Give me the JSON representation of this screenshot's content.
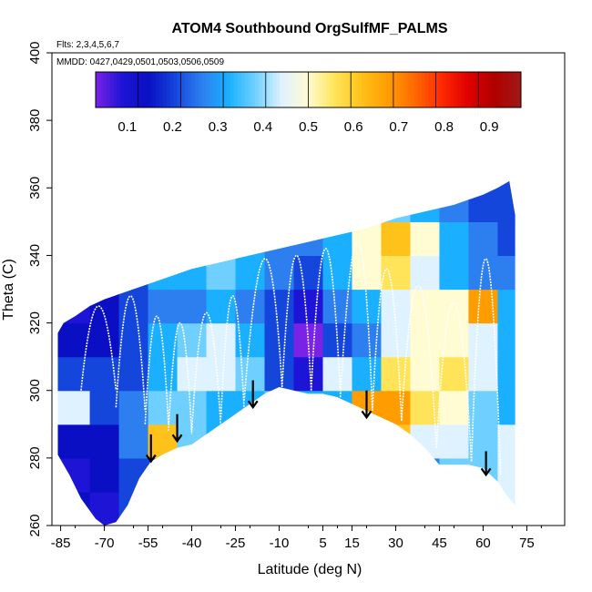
{
  "chart_data": {
    "type": "heatmap",
    "title": "ATOM4 Southbound OrgSulfMF_PALMS",
    "subtitle_flights": "Flts: 2,3,4,5,6,7",
    "subtitle_dates": "MMDD: 0427,0429,0501,0503,0506,0509",
    "xlabel": "Latitude (deg N)",
    "ylabel": "Theta (C)",
    "xlim": [
      -88,
      88
    ],
    "ylim": [
      260,
      400
    ],
    "x_ticks": [
      -85,
      -70,
      -55,
      -40,
      -25,
      -10,
      5,
      15,
      30,
      45,
      60,
      75
    ],
    "y_ticks": [
      260,
      280,
      300,
      320,
      340,
      360,
      380,
      400
    ],
    "colorbar": {
      "min": 0.03,
      "max": 0.97,
      "tick_values": [
        0.1,
        0.2,
        0.3,
        0.4,
        0.5,
        0.6,
        0.7,
        0.8,
        0.9
      ],
      "tick_labels": [
        "0.1",
        "0.2",
        "0.3",
        "0.4",
        "0.5",
        "0.6",
        "0.7",
        "0.8",
        "0.9"
      ],
      "colors": [
        "#7a22e6",
        "#1e14d6",
        "#0a0fc4",
        "#1446dc",
        "#2d7ff0",
        "#1ab0ff",
        "#6fd0ff",
        "#dff2ff",
        "#fffbd2",
        "#ffe45a",
        "#ffc21a",
        "#ff9c00",
        "#ff6a00",
        "#ff2a00",
        "#e00000",
        "#b00000",
        "#a01818"
      ]
    },
    "region_top": [
      [
        -86,
        317
      ],
      [
        -84,
        320
      ],
      [
        -80,
        322
      ],
      [
        -75,
        325
      ],
      [
        -70,
        327
      ],
      [
        -60,
        330
      ],
      [
        -50,
        333
      ],
      [
        -40,
        336
      ],
      [
        -30,
        338
      ],
      [
        -20,
        340
      ],
      [
        -10,
        342
      ],
      [
        0,
        344
      ],
      [
        10,
        346
      ],
      [
        20,
        348
      ],
      [
        30,
        351
      ],
      [
        40,
        353
      ],
      [
        50,
        355
      ],
      [
        60,
        358
      ],
      [
        65,
        360
      ],
      [
        69,
        362
      ],
      [
        71,
        352
      ]
    ],
    "region_bottom": [
      [
        -86,
        281
      ],
      [
        -82,
        275
      ],
      [
        -78,
        268
      ],
      [
        -73,
        262
      ],
      [
        -70,
        260
      ],
      [
        -66,
        261
      ],
      [
        -62,
        266
      ],
      [
        -58,
        274
      ],
      [
        -54,
        279
      ],
      [
        -50,
        281
      ],
      [
        -45,
        283
      ],
      [
        -40,
        284
      ],
      [
        -35,
        287
      ],
      [
        -30,
        290
      ],
      [
        -25,
        293
      ],
      [
        -20,
        296
      ],
      [
        -15,
        299
      ],
      [
        -10,
        301
      ],
      [
        -5,
        300
      ],
      [
        0,
        299
      ],
      [
        5,
        299
      ],
      [
        10,
        298
      ],
      [
        15,
        296
      ],
      [
        20,
        294
      ],
      [
        25,
        292
      ],
      [
        30,
        290
      ],
      [
        35,
        287
      ],
      [
        40,
        283
      ],
      [
        45,
        278
      ],
      [
        50,
        278
      ],
      [
        55,
        278
      ],
      [
        60,
        277
      ],
      [
        65,
        273
      ],
      [
        68,
        269
      ],
      [
        71,
        266
      ]
    ],
    "grid": {
      "lat_edges": [
        -86,
        -75,
        -65,
        -55,
        -45,
        -35,
        -25,
        -15,
        -5,
        5,
        15,
        25,
        35,
        45,
        55,
        65,
        72
      ],
      "theta_edges": [
        260,
        270,
        280,
        290,
        300,
        310,
        320,
        330,
        340,
        350,
        362
      ],
      "values": [
        [
          0.15,
          0.14,
          0.2,
          0.22,
          0.28,
          0.3,
          0.32,
          0.33,
          0.35,
          0.36,
          0.36,
          0.36,
          0.3,
          0.35,
          0.4,
          0.42
        ],
        [
          0.14,
          0.16,
          0.2,
          0.24,
          0.3,
          0.32,
          0.34,
          0.35,
          0.35,
          0.36,
          0.38,
          0.38,
          0.3,
          0.38,
          0.4,
          0.42
        ],
        [
          0.16,
          0.18,
          0.3,
          0.62,
          0.4,
          0.36,
          0.35,
          0.36,
          0.37,
          0.38,
          0.6,
          0.6,
          0.45,
          0.45,
          0.4,
          0.42
        ],
        [
          0.42,
          0.25,
          0.28,
          0.38,
          0.4,
          0.35,
          0.36,
          0.38,
          0.35,
          0.35,
          0.64,
          0.66,
          0.55,
          0.48,
          0.4,
          0.36
        ],
        [
          0.22,
          0.2,
          0.22,
          0.32,
          0.42,
          0.45,
          0.38,
          0.25,
          0.13,
          0.42,
          0.35,
          0.56,
          0.52,
          0.55,
          0.45,
          0.35
        ],
        [
          0.18,
          0.16,
          0.22,
          0.34,
          0.4,
          0.42,
          0.35,
          0.2,
          0.06,
          0.22,
          0.3,
          0.46,
          0.48,
          0.5,
          0.44,
          0.34
        ],
        [
          0.14,
          0.15,
          0.2,
          0.28,
          0.3,
          0.32,
          0.3,
          0.2,
          0.1,
          0.26,
          0.34,
          0.42,
          0.52,
          0.48,
          0.64,
          0.32
        ],
        [
          0.2,
          0.18,
          0.24,
          0.32,
          0.36,
          0.38,
          0.34,
          0.28,
          0.24,
          0.33,
          0.5,
          0.58,
          0.42,
          0.36,
          0.3,
          0.28
        ],
        [
          0.3,
          0.28,
          0.3,
          0.34,
          0.36,
          0.38,
          0.35,
          0.3,
          0.3,
          0.36,
          0.48,
          0.62,
          0.48,
          0.33,
          0.26,
          0.22
        ],
        [
          0.3,
          0.3,
          0.3,
          0.3,
          0.3,
          0.32,
          0.34,
          0.3,
          0.3,
          0.34,
          0.36,
          0.38,
          0.36,
          0.28,
          0.22,
          0.2
        ]
      ]
    },
    "flight_tracks": [
      {
        "lat": [
          -78,
          -72,
          -66
        ],
        "theta": [
          300,
          325,
          300
        ]
      },
      {
        "lat": [
          -66,
          -61,
          -56
        ],
        "theta": [
          295,
          328,
          294
        ]
      },
      {
        "lat": [
          -56,
          -52,
          -48
        ],
        "theta": [
          290,
          322,
          290
        ]
      },
      {
        "lat": [
          -48,
          -44,
          -40
        ],
        "theta": [
          288,
          320,
          287
        ]
      },
      {
        "lat": [
          -40,
          -35,
          -30
        ],
        "theta": [
          288,
          323,
          289
        ]
      },
      {
        "lat": [
          -30,
          -26,
          -22
        ],
        "theta": [
          292,
          328,
          294
        ]
      },
      {
        "lat": [
          -22,
          -15,
          -9
        ],
        "theta": [
          297,
          339,
          301
        ]
      },
      {
        "lat": [
          -9,
          -4,
          1
        ],
        "theta": [
          301,
          340,
          300
        ]
      },
      {
        "lat": [
          1,
          6,
          11
        ],
        "theta": [
          300,
          342,
          299
        ]
      },
      {
        "lat": [
          11,
          17,
          22
        ],
        "theta": [
          298,
          344,
          294
        ]
      },
      {
        "lat": [
          22,
          27,
          32
        ],
        "theta": [
          294,
          336,
          291
        ]
      },
      {
        "lat": [
          32,
          38,
          44
        ],
        "theta": [
          291,
          331,
          283
        ]
      },
      {
        "lat": [
          44,
          50,
          56
        ],
        "theta": [
          283,
          326,
          279
        ]
      },
      {
        "lat": [
          56,
          61,
          66
        ],
        "theta": [
          279,
          339,
          275
        ]
      }
    ],
    "arrows": [
      {
        "lat": -54,
        "theta_from": 287,
        "theta_to": 279
      },
      {
        "lat": -45,
        "theta_from": 293,
        "theta_to": 285
      },
      {
        "lat": -19,
        "theta_from": 303,
        "theta_to": 295
      },
      {
        "lat": 20,
        "theta_from": 300,
        "theta_to": 292
      },
      {
        "lat": 61,
        "theta_from": 282,
        "theta_to": 275
      }
    ]
  }
}
